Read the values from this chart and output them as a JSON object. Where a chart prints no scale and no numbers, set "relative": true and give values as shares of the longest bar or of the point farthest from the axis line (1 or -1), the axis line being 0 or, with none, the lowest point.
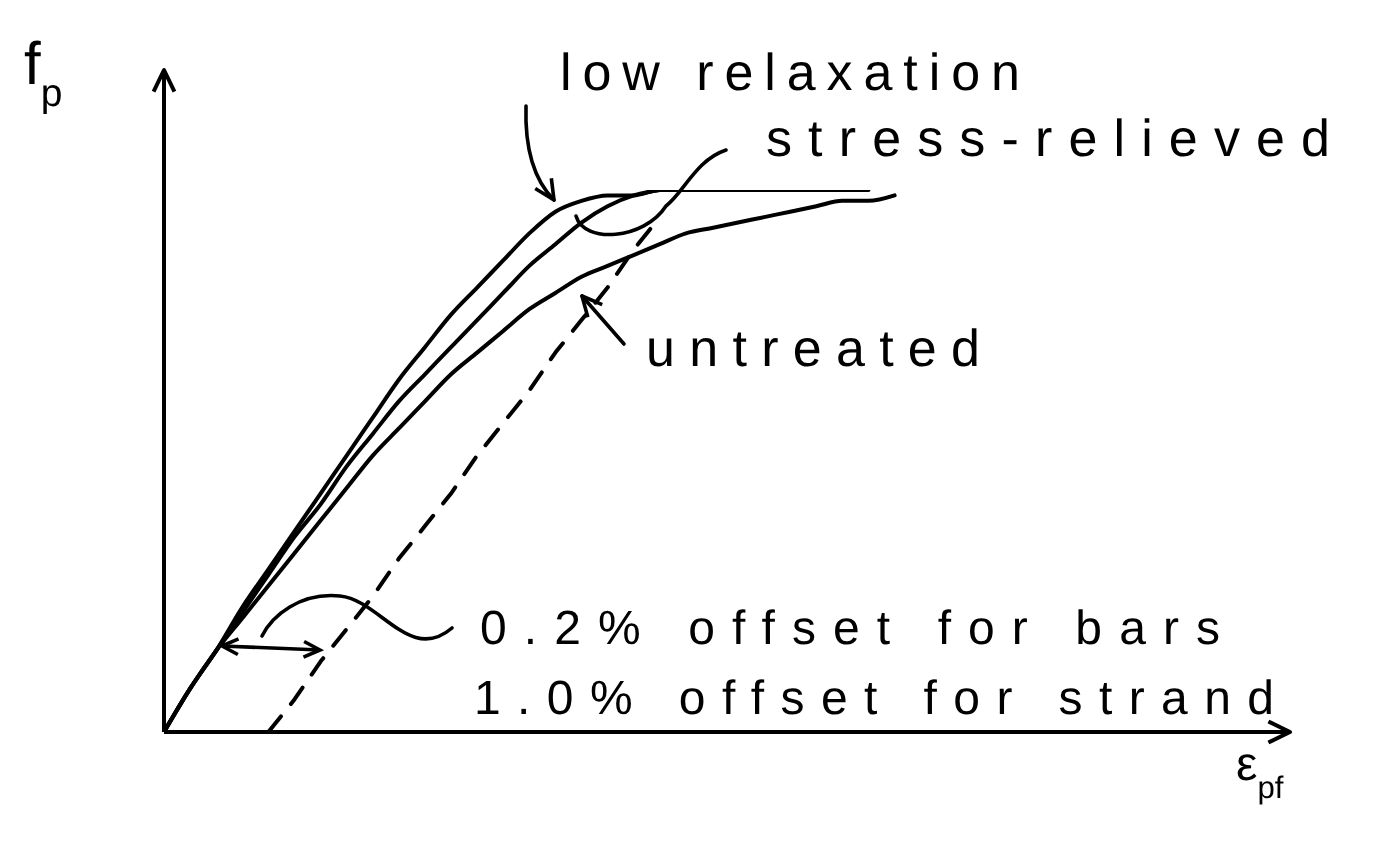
{
  "chart_data": {
    "type": "line",
    "xlabel": "ε$_{pf}$",
    "ylabel": "f$_{p}$",
    "categories": [
      null,
      null,
      null,
      null,
      null,
      null,
      null,
      null,
      null,
      null,
      null,
      null,
      null,
      null,
      null,
      null,
      null,
      null,
      null,
      null,
      null,
      null,
      null,
      null,
      null,
      null,
      null,
      null,
      null,
      null,
      null,
      null,
      null,
      null,
      null,
      null,
      null,
      null,
      null,
      null,
      null,
      null,
      null,
      null
    ],
    "relative": true,
    "marker": "none",
    "line_style": "solid",
    "series": [
      {
        "name": "low relaxation",
        "color": "#000000",
        "values": [
          0,
          0.08,
          0.15,
          0.23,
          0.3,
          0.37,
          0.44,
          0.51,
          0.58,
          0.65,
          0.71,
          0.77,
          0.82,
          0.87,
          0.92,
          0.96,
          0.98,
          0.99,
          0.99,
          1,
          1,
          1,
          1,
          1,
          1,
          1,
          1,
          1,
          null,
          null,
          null,
          null,
          null,
          null,
          null,
          null,
          null,
          null,
          null,
          null,
          null,
          null,
          null,
          null
        ]
      },
      {
        "name": "stress-relieved",
        "color": "#000000",
        "values": [
          0,
          0.08,
          0.15,
          0.22,
          0.29,
          0.36,
          0.42,
          0.49,
          0.55,
          0.61,
          0.66,
          0.71,
          0.76,
          0.81,
          0.86,
          0.9,
          0.94,
          0.97,
          0.99,
          1,
          null,
          null,
          null,
          null,
          null,
          null,
          null,
          null,
          null,
          null,
          null,
          null,
          null,
          null,
          null,
          null,
          null,
          null,
          null,
          null,
          null,
          null,
          null,
          null
        ]
      },
      {
        "name": "untreated",
        "color": "#000000",
        "values": [
          0,
          0.08,
          0.15,
          0.21,
          0.27,
          0.33,
          0.39,
          0.45,
          0.51,
          0.56,
          0.61,
          0.66,
          0.7,
          0.74,
          0.78,
          0.81,
          0.84,
          0.86,
          0.88,
          0.9,
          0.92,
          0.93,
          0.94,
          0.95,
          0.96,
          0.97,
          0.98,
          0.98,
          0.99,
          null,
          null,
          null,
          null,
          null,
          null,
          null,
          null,
          null,
          null,
          null,
          null,
          null,
          null,
          null
        ]
      },
      {
        "color": "#000000",
        "line_style": "dashed",
        "values": [
          null,
          null,
          null,
          null,
          0,
          0.06,
          0.13,
          0.19,
          0.25,
          0.32,
          0.38,
          0.44,
          0.51,
          0.57,
          0.63,
          0.7,
          0.76,
          0.82,
          0.89,
          0.95,
          null,
          null,
          null,
          null,
          null,
          null,
          null,
          null,
          null,
          null,
          null,
          null,
          null,
          null,
          null,
          null,
          null,
          null,
          null,
          null,
          null,
          null,
          null,
          null
        ]
      }
    ],
    "annotations": [
      "0.2% offset for bars",
      "1.0% offset for strand"
    ]
  }
}
